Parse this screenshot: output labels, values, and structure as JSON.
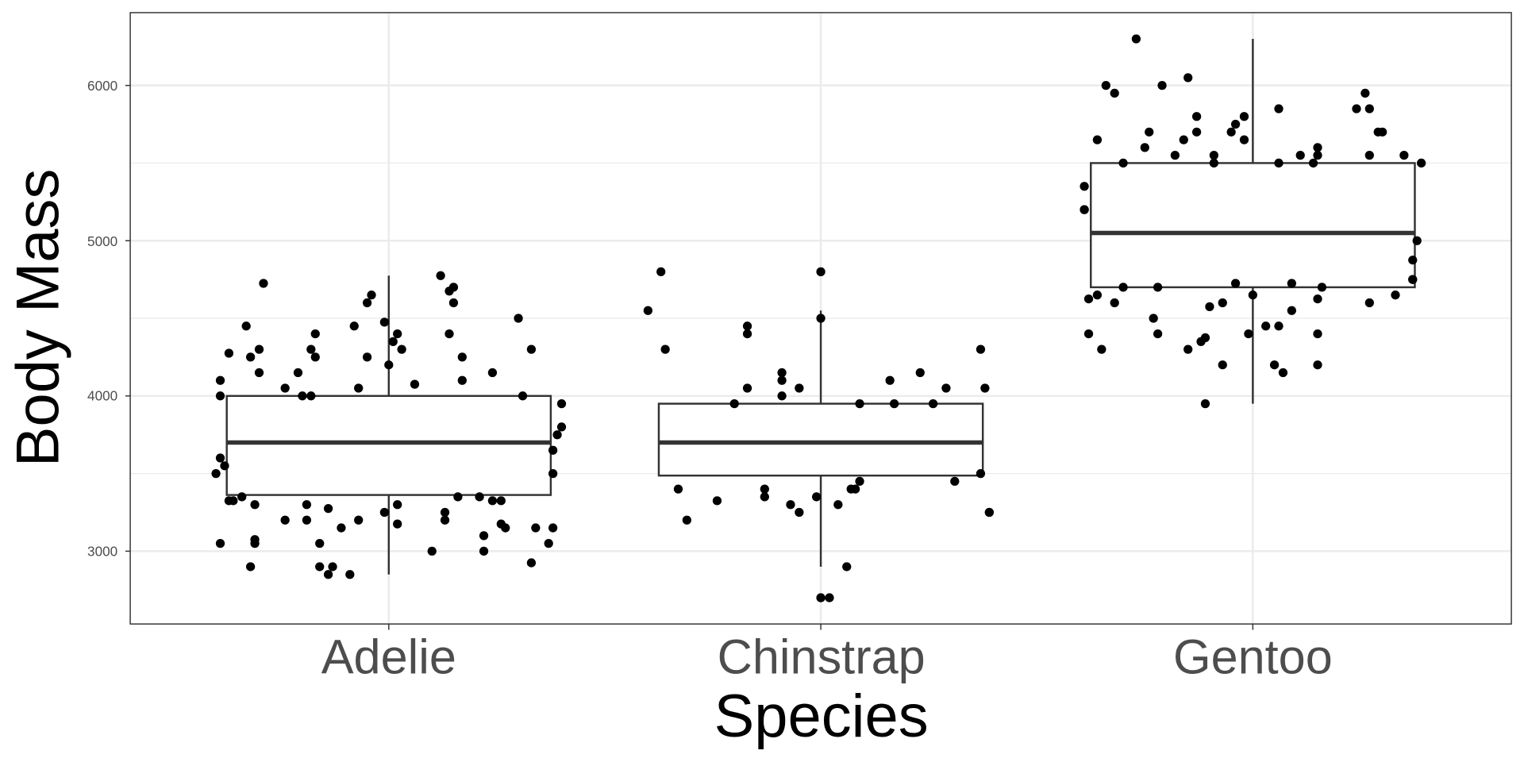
{
  "chart_data": {
    "type": "box",
    "title": "",
    "xlabel": "Species",
    "ylabel": "Body Mass",
    "categories": [
      "Adelie",
      "Chinstrap",
      "Gentoo"
    ],
    "ylim": [
      2531,
      6469
    ],
    "yticks": [
      3000,
      4000,
      5000,
      6000
    ],
    "ytick_labels": [
      "3000",
      "4000",
      "5000",
      "6000"
    ],
    "grid": true,
    "legend": "none",
    "colors": {
      "point": "#000000",
      "box_line": "#333333",
      "grid": "#ebebeb",
      "panel_border": "#333333",
      "outlier": "#333333"
    },
    "boxes": [
      {
        "category": "Adelie",
        "whisker_low": 2850,
        "q1": 3362,
        "median": 3700,
        "q3": 4000,
        "whisker_high": 4775,
        "outliers": []
      },
      {
        "category": "Chinstrap",
        "whisker_low": 2900,
        "q1": 3487,
        "median": 3700,
        "q3": 3950,
        "whisker_high": 4550,
        "outliers": [
          4800,
          2700,
          2700
        ]
      },
      {
        "category": "Gentoo",
        "whisker_low": 3950,
        "q1": 4700,
        "median": 5050,
        "q3": 5500,
        "whisker_high": 6300,
        "outliers": []
      }
    ],
    "points": [
      {
        "category": "Adelie",
        "jitter": [
          -0.29,
          0.12,
          -0.04,
          0.15,
          0.14,
          -0.05,
          0.15,
          -0.33,
          -0.08,
          -0.01,
          -0.17,
          0.02,
          0.01,
          0.03,
          0.14,
          0.3,
          -0.3,
          -0.37,
          -0.32,
          -0.18,
          -0.17,
          0.33,
          -0.05,
          0.0,
          0.17,
          -0.21,
          -0.3,
          -0.39,
          0.17,
          0.24,
          -0.07,
          0.06,
          -0.24,
          -0.2,
          -0.18,
          -0.39,
          0.31,
          0.4,
          0.4,
          0.39,
          0.38,
          -0.39,
          -0.38,
          -0.4,
          0.38,
          -0.37,
          -0.36,
          -0.34,
          -0.31,
          0.02,
          0.16,
          0.21,
          0.24,
          0.26,
          0.13,
          0.13,
          -0.14,
          -0.24,
          -0.19,
          -0.19,
          -0.07,
          -0.01,
          0.02,
          0.26,
          0.27,
          -0.11,
          0.34,
          0.38,
          0.22,
          -0.31,
          -0.31,
          -0.16,
          0.37,
          0.1,
          0.22,
          -0.32,
          -0.16,
          -0.13,
          -0.14,
          -0.09,
          0.33,
          -0.39
        ],
        "values": [
          4725,
          4775,
          4650,
          4700,
          4675,
          4600,
          4600,
          4450,
          4450,
          4475,
          4400,
          4400,
          4350,
          4300,
          4400,
          4500,
          4300,
          4275,
          4250,
          4300,
          4250,
          4300,
          4250,
          4200,
          4250,
          4150,
          4150,
          4100,
          4100,
          4150,
          4050,
          4075,
          4050,
          4000,
          4000,
          4000,
          4000,
          3950,
          3800,
          3750,
          3650,
          3600,
          3550,
          3500,
          3500,
          3325,
          3325,
          3350,
          3300,
          3300,
          3350,
          3350,
          3325,
          3325,
          3250,
          3200,
          3275,
          3200,
          3300,
          3200,
          3200,
          3250,
          3175,
          3175,
          3150,
          3150,
          3150,
          3150,
          3100,
          3075,
          3050,
          3050,
          3050,
          3000,
          3000,
          2900,
          2900,
          2900,
          2850,
          2850,
          2925,
          3050
        ]
      },
      {
        "category": "Chinstrap",
        "jitter": [
          -0.37,
          0.0,
          -0.4,
          0.0,
          -0.36,
          -0.17,
          -0.17,
          0.37,
          -0.09,
          -0.09,
          0.16,
          0.23,
          -0.17,
          -0.05,
          -0.09,
          0.29,
          0.38,
          -0.2,
          0.09,
          0.17,
          0.26,
          -0.33,
          -0.13,
          -0.13,
          0.07,
          0.09,
          0.08,
          0.31,
          0.37,
          -0.24,
          -0.07,
          -0.05,
          -0.01,
          0.04,
          0.39,
          0.39,
          -0.31,
          0.06,
          0.0,
          0.02
        ],
        "values": [
          4800,
          4800,
          4550,
          4500,
          4300,
          4450,
          4400,
          4300,
          4150,
          4100,
          4100,
          4150,
          4050,
          4050,
          4000,
          4050,
          4050,
          3950,
          3950,
          3950,
          3950,
          3400,
          3400,
          3350,
          3400,
          3450,
          3400,
          3450,
          3500,
          3325,
          3300,
          3250,
          3350,
          3300,
          3250,
          3250,
          3200,
          2900,
          2700,
          2700
        ]
      },
      {
        "category": "Gentoo",
        "jitter": [
          -0.27,
          -0.34,
          -0.32,
          -0.21,
          -0.15,
          -0.36,
          -0.24,
          -0.13,
          -0.02,
          0.06,
          -0.04,
          -0.13,
          -0.16,
          -0.05,
          -0.02,
          0.26,
          0.24,
          0.27,
          0.29,
          0.3,
          -0.25,
          -0.18,
          -0.09,
          -0.09,
          -0.3,
          0.11,
          0.15,
          0.15,
          0.27,
          0.35,
          0.06,
          0.14,
          0.39,
          -0.39,
          -0.39,
          -0.39,
          0.38,
          0.37,
          0.37,
          -0.36,
          -0.38,
          -0.32,
          -0.3,
          -0.22,
          -0.04,
          0.0,
          0.09,
          0.15,
          0.27,
          0.33,
          -0.1,
          -0.07,
          -0.23,
          0.03,
          0.06,
          0.15,
          -0.38,
          -0.35,
          -0.22,
          -0.11,
          -0.12,
          -0.15,
          -0.01,
          -0.07,
          0.05,
          0.07,
          0.15,
          -0.11,
          0.09,
          0.16,
          0.37
        ],
        "values": [
          6300,
          6000,
          5950,
          6000,
          6050,
          5650,
          5700,
          5800,
          5800,
          5850,
          5750,
          5700,
          5650,
          5700,
          5650,
          5950,
          5850,
          5850,
          5700,
          5700,
          5600,
          5550,
          5550,
          5500,
          5500,
          5550,
          5550,
          5600,
          5550,
          5550,
          5500,
          5500,
          5500,
          5350,
          5200,
          5200,
          5000,
          4875,
          4750,
          4650,
          4625,
          4600,
          4700,
          4700,
          4725,
          4650,
          4550,
          4625,
          4600,
          4650,
          4575,
          4600,
          4500,
          4450,
          4450,
          4400,
          4400,
          4300,
          4400,
          4375,
          4350,
          4300,
          4400,
          4200,
          4200,
          4150,
          4200,
          3950,
          4725,
          4700,
          4750
        ]
      }
    ]
  }
}
